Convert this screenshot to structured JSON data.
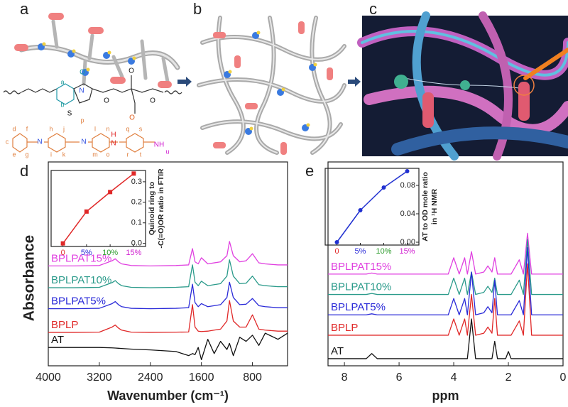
{
  "panel_labels": [
    "a",
    "b",
    "c",
    "d",
    "e"
  ],
  "structure": {
    "atoms": [
      "O",
      "N",
      "S",
      "O",
      "O",
      "O",
      "O",
      "N",
      "N",
      "H",
      "N",
      "NH"
    ],
    "proton_labels": [
      "a",
      "b",
      "c",
      "d",
      "e",
      "f",
      "g",
      "h",
      "i",
      "j",
      "k",
      "l",
      "m",
      "n",
      "o",
      "p",
      "q",
      "r",
      "s",
      "t",
      "u"
    ]
  },
  "chart_data": [
    {
      "type": "line",
      "xlabel": "Wavenumber (cm⁻¹)",
      "ylabel": "Absorbance",
      "xlim": [
        4000,
        250
      ],
      "ylim": [
        0,
        10
      ],
      "xticks": [
        4000,
        3200,
        2400,
        1600,
        800
      ],
      "x": [
        4000,
        3600,
        3200,
        3000,
        2950,
        2900,
        2850,
        2700,
        2400,
        2000,
        1800,
        1740,
        1700,
        1650,
        1600,
        1500,
        1400,
        1300,
        1200,
        1160,
        1100,
        1000,
        900,
        800,
        700,
        600,
        400,
        250
      ],
      "series": [
        {
          "name": "BPLPAT15%",
          "color": "#e040e0",
          "values": [
            4.9,
            4.9,
            4.92,
            5.15,
            5.25,
            5.1,
            5.0,
            4.92,
            4.9,
            4.92,
            4.95,
            5.75,
            5.1,
            5.0,
            5.3,
            5.0,
            5.05,
            5.1,
            5.4,
            6.1,
            5.4,
            5.1,
            5.15,
            5.5,
            5.05,
            5.0,
            4.95,
            4.95
          ]
        },
        {
          "name": "BPLPAT10%",
          "color": "#2a9a8a",
          "values": [
            3.83,
            3.83,
            3.85,
            4.08,
            4.18,
            4.03,
            3.93,
            3.85,
            3.83,
            3.85,
            3.88,
            4.95,
            4.1,
            3.93,
            4.15,
            3.93,
            3.98,
            4.03,
            4.4,
            5.2,
            4.4,
            4.03,
            4.05,
            4.4,
            3.98,
            3.93,
            3.88,
            3.88
          ]
        },
        {
          "name": "BPLPAT5%",
          "color": "#2a2ad8",
          "values": [
            2.8,
            2.8,
            2.82,
            3.05,
            3.15,
            3.0,
            2.9,
            2.82,
            2.8,
            2.82,
            2.85,
            4.0,
            3.1,
            2.9,
            3.05,
            2.9,
            2.95,
            3.0,
            3.35,
            4.1,
            3.35,
            3.0,
            3.02,
            3.3,
            2.95,
            2.9,
            2.85,
            2.85
          ]
        },
        {
          "name": "BPLP",
          "color": "#e02828",
          "values": [
            1.64,
            1.64,
            1.65,
            1.9,
            2.0,
            1.85,
            1.75,
            1.65,
            1.64,
            1.65,
            1.66,
            3.0,
            1.9,
            1.7,
            1.68,
            1.7,
            1.75,
            1.8,
            2.2,
            3.2,
            2.2,
            1.9,
            1.9,
            2.5,
            1.8,
            1.75,
            1.7,
            1.7
          ]
        },
        {
          "name": "AT",
          "color": "#111111",
          "values": [
            0.9,
            0.9,
            0.9,
            0.88,
            0.87,
            0.86,
            0.85,
            0.82,
            0.78,
            0.7,
            0.5,
            0.6,
            0.55,
            0.9,
            0.3,
            1.3,
            0.6,
            1.2,
            0.8,
            1.1,
            0.5,
            1.4,
            1.2,
            1.5,
            1.0,
            1.6,
            1.3,
            1.6
          ]
        }
      ]
    },
    {
      "type": "line",
      "marker": "square",
      "ylabel": [
        "Quinoid ring to",
        "-C(=O)OR ratio in FTIR"
      ],
      "categories": [
        "0",
        "5%",
        "10%",
        "15%"
      ],
      "tick_label_colors": [
        "#e02828",
        "#2a2ad8",
        "#2a9a2a",
        "#d020d0"
      ],
      "ylim": [
        -0.015,
        0.355
      ],
      "yticks": [
        {
          "value": 0,
          "label": "0.0"
        },
        0.1,
        0.2,
        0.3
      ],
      "series": [
        {
          "color": "#e02828",
          "values": [
            0,
            0.155,
            0.25,
            0.34
          ]
        }
      ]
    },
    {
      "type": "line",
      "xlabel": "ppm",
      "xlim": [
        8.6,
        0
      ],
      "ylim": [
        0,
        10
      ],
      "xticks": [
        8,
        6,
        4,
        2,
        0
      ],
      "x": [
        8.6,
        7.2,
        7.0,
        6.8,
        4.2,
        4.0,
        3.8,
        3.6,
        3.5,
        3.35,
        3.2,
        2.9,
        2.75,
        2.6,
        2.5,
        2.4,
        2.1,
        2.0,
        1.9,
        1.6,
        1.45,
        1.3,
        1.15,
        0.9,
        0
      ],
      "series": [
        {
          "name": "BPLPAT15%",
          "color": "#e040e0",
          "values": [
            4.5,
            4.5,
            4.55,
            4.5,
            4.5,
            5.3,
            4.5,
            5.3,
            4.5,
            5.6,
            4.5,
            4.6,
            4.9,
            4.6,
            5.3,
            4.5,
            4.5,
            4.5,
            4.5,
            5.2,
            4.5,
            6.5,
            4.5,
            4.5,
            4.5
          ]
        },
        {
          "name": "BPLPAT10%",
          "color": "#2a9a8a",
          "values": [
            3.5,
            3.5,
            3.55,
            3.5,
            3.5,
            4.3,
            3.5,
            4.3,
            3.5,
            4.6,
            3.5,
            3.6,
            3.9,
            3.6,
            4.3,
            3.5,
            3.5,
            3.5,
            3.5,
            4.2,
            3.5,
            6.2,
            3.5,
            3.5,
            3.5
          ]
        },
        {
          "name": "BPLPAT5%",
          "color": "#2a2ad8",
          "values": [
            2.5,
            2.5,
            2.55,
            2.5,
            2.5,
            3.3,
            2.5,
            3.3,
            2.5,
            4.6,
            2.5,
            2.6,
            2.9,
            2.6,
            4.2,
            2.5,
            2.5,
            2.5,
            2.5,
            3.2,
            2.5,
            5.8,
            2.5,
            2.5,
            2.5
          ]
        },
        {
          "name": "BPLP",
          "color": "#e02828",
          "values": [
            1.5,
            1.5,
            1.5,
            1.5,
            1.5,
            2.3,
            1.5,
            2.3,
            1.5,
            3.5,
            1.5,
            1.6,
            1.9,
            1.6,
            3.3,
            1.5,
            1.5,
            1.5,
            1.5,
            2.2,
            1.5,
            5.0,
            1.5,
            1.5,
            1.5
          ]
        },
        {
          "name": "AT",
          "color": "#111111",
          "values": [
            0.35,
            0.35,
            0.6,
            0.35,
            0.35,
            0.35,
            0.35,
            0.35,
            0.35,
            2.3,
            0.35,
            0.35,
            0.35,
            0.35,
            1.2,
            0.35,
            0.35,
            0.7,
            0.35,
            0.35,
            0.35,
            0.35,
            0.35,
            0.35,
            0.35
          ]
        }
      ]
    },
    {
      "type": "line",
      "marker": "circle",
      "ylabel": [
        "AT to OD mole ratio",
        "in ¹H NMR"
      ],
      "categories": [
        "0",
        "5%",
        "10%",
        "15%"
      ],
      "tick_label_colors": [
        "#e02828",
        "#2a2ad8",
        "#2a9a2a",
        "#d020d0"
      ],
      "ylim": [
        -0.004,
        0.104
      ],
      "yticks": [
        {
          "value": 0,
          "label": "0.00"
        },
        {
          "value": 0.04,
          "label": "0.04"
        },
        {
          "value": 0.08,
          "label": "0.08"
        }
      ],
      "series": [
        {
          "color": "#2030d0",
          "values": [
            0,
            0.045,
            0.077,
            0.1
          ]
        }
      ]
    }
  ]
}
